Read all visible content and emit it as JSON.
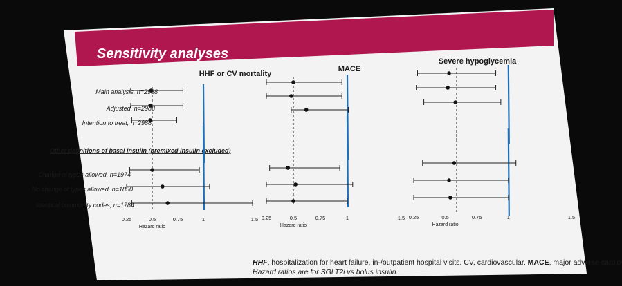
{
  "slide": {
    "title": "Sensitivity analyses",
    "colors": {
      "banner": "#b0174f",
      "slide_bg": "#f3f3f3",
      "ref_line": "#1e6fb8",
      "projector_bg": "#0a0a0a"
    }
  },
  "panels": [
    {
      "title": "HHF or CV mortality"
    },
    {
      "title": "MACE"
    },
    {
      "title": "Severe hypoglycemia"
    }
  ],
  "groups": [
    {
      "rows": [
        "Main analysis, n=2988",
        "Adjusted, n=2988",
        "Intention to treat, n=2988"
      ]
    },
    {
      "heading": "Other definitions of basal insulin (premixed insulin excluded)",
      "rows": [
        "Change of types allowed, n=1974",
        "No change of types allowed, n=1850",
        "Identical commodity codes, n=1784"
      ]
    }
  ],
  "axis": {
    "xlabel": "Hazard ratio",
    "ticks": [
      "0.25",
      "0.5",
      "0.75",
      "1",
      "1.5"
    ]
  },
  "chart_data": [
    {
      "type": "forest",
      "title": "HHF or CV mortality",
      "xlabel": "Hazard ratio",
      "xlim": [
        0.25,
        1.5
      ],
      "reference": 1,
      "pooled": 0.5,
      "rows": [
        {
          "label": "Main analysis, n=2988",
          "hr": 0.49,
          "lo": 0.29,
          "hi": 0.8
        },
        {
          "label": "Adjusted, n=2988",
          "hr": 0.48,
          "lo": 0.29,
          "hi": 0.8
        },
        {
          "label": "Intention to treat, n=2988",
          "hr": 0.48,
          "lo": 0.3,
          "hi": 0.74
        },
        {
          "label": "Change of types allowed, n=1974",
          "hr": 0.5,
          "lo": 0.28,
          "hi": 0.96
        },
        {
          "label": "No change of types allowed, n=1850",
          "hr": 0.6,
          "lo": 0.25,
          "hi": 1.06
        },
        {
          "label": "Identical commodity codes, n=1784",
          "hr": 0.65,
          "lo": 0.3,
          "hi": 1.48
        }
      ]
    },
    {
      "type": "forest",
      "title": "MACE",
      "xlabel": "Hazard ratio",
      "xlim": [
        0.25,
        1.5
      ],
      "reference": 1,
      "pooled": 0.5,
      "rows": [
        {
          "label": "Main analysis, n=2988",
          "hr": 0.5,
          "lo": 0.25,
          "hi": 0.95
        },
        {
          "label": "Adjusted, n=2988",
          "hr": 0.48,
          "lo": 0.25,
          "hi": 0.95
        },
        {
          "label": "Intention to treat, n=2988",
          "hr": 0.62,
          "lo": 0.48,
          "hi": 1.01
        },
        {
          "label": "Change of types allowed, n=1974",
          "hr": 0.45,
          "lo": 0.28,
          "hi": 0.93
        },
        {
          "label": "No change of types allowed, n=1850",
          "hr": 0.52,
          "lo": 0.25,
          "hi": 1.05
        },
        {
          "label": "Identical commodity codes, n=1784",
          "hr": 0.5,
          "lo": 0.25,
          "hi": 1.0
        }
      ]
    },
    {
      "type": "forest",
      "title": "Severe hypoglycemia",
      "xlabel": "Hazard ratio",
      "xlim": [
        0.25,
        1.5
      ],
      "reference": 1,
      "pooled": 0.59,
      "rows": [
        {
          "label": "Main analysis, n=2988",
          "hr": 0.53,
          "lo": 0.28,
          "hi": 0.9
        },
        {
          "label": "Adjusted, n=2988",
          "hr": 0.52,
          "lo": 0.27,
          "hi": 0.9
        },
        {
          "label": "Intention to treat, n=2988",
          "hr": 0.58,
          "lo": 0.33,
          "hi": 0.94
        },
        {
          "label": "Change of types allowed, n=1974",
          "hr": 0.57,
          "lo": 0.32,
          "hi": 1.06
        },
        {
          "label": "No change of types allowed, n=1850",
          "hr": 0.53,
          "lo": 0.25,
          "hi": 1.0
        },
        {
          "label": "Identical commodity codes, n=1784",
          "hr": 0.54,
          "lo": 0.25,
          "hi": 1.0
        }
      ]
    }
  ],
  "footnote": {
    "line1_a": "HHF",
    "line1_b": ", hospitalization for heart failure, in-/outpatient hospital visits. CV, cardiovascular. ",
    "line1_c": "MACE",
    "line1_d": ", major adverse cardiovascular event.",
    "line2": "Hazard ratios are for SGLT2i vs bolus insulin."
  }
}
